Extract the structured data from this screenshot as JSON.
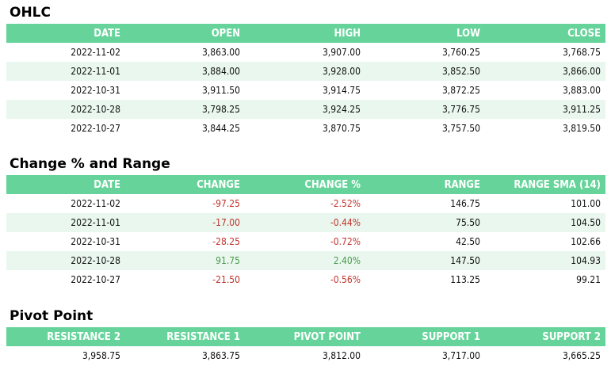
{
  "ohlc": {
    "title": "OHLC",
    "headers": [
      "DATE",
      "OPEN",
      "HIGH",
      "LOW",
      "CLOSE"
    ],
    "rows": [
      [
        "2022-11-02",
        "3,863.00",
        "3,907.00",
        "3,760.25",
        "3,768.75"
      ],
      [
        "2022-11-01",
        "3,884.00",
        "3,928.00",
        "3,852.50",
        "3,866.00"
      ],
      [
        "2022-10-31",
        "3,911.50",
        "3,914.75",
        "3,872.25",
        "3,883.00"
      ],
      [
        "2022-10-28",
        "3,798.25",
        "3,924.25",
        "3,776.75",
        "3,911.25"
      ],
      [
        "2022-10-27",
        "3,844.25",
        "3,870.75",
        "3,757.50",
        "3,819.50"
      ]
    ]
  },
  "change": {
    "title": "Change % and Range",
    "headers": [
      "DATE",
      "CHANGE",
      "CHANGE %",
      "RANGE",
      "RANGE SMA (14)"
    ],
    "rows": [
      [
        "2022-11-02",
        "-97.25",
        "-2.52%",
        "146.75",
        "101.00"
      ],
      [
        "2022-11-01",
        "-17.00",
        "-0.44%",
        "75.50",
        "104.50"
      ],
      [
        "2022-10-31",
        "-28.25",
        "-0.72%",
        "42.50",
        "102.66"
      ],
      [
        "2022-10-28",
        "91.75",
        "2.40%",
        "147.50",
        "104.93"
      ],
      [
        "2022-10-27",
        "-21.50",
        "-0.56%",
        "113.25",
        "99.21"
      ]
    ],
    "colors": {
      "negative": "#c0342e",
      "positive": "#4a9a4a"
    }
  },
  "pivot": {
    "title": "Pivot Point",
    "headers": [
      "RESISTANCE 2",
      "RESISTANCE 1",
      "PIVOT POINT",
      "SUPPORT 1",
      "SUPPORT 2"
    ],
    "rows": [
      [
        "3,958.75",
        "3,863.75",
        "3,812.00",
        "3,717.00",
        "3,665.25"
      ]
    ]
  },
  "theme": {
    "header_bg": "#66d49a",
    "alt_row_bg": "#e9f7ee"
  }
}
